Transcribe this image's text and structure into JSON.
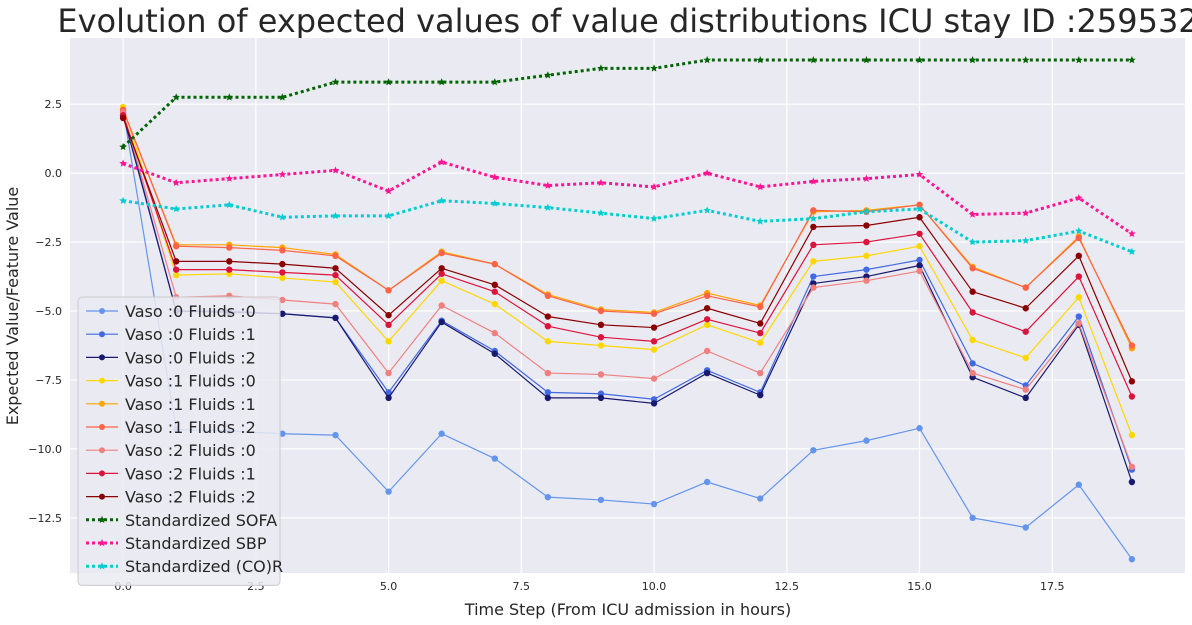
{
  "chart_data": {
    "type": "line",
    "title": "Evolution of expected values of value distributions ICU stay ID :259532",
    "xlabel": "Time Step (From ICU admission in hours)",
    "ylabel": "Expected Value/Feature Value",
    "xlim": [
      -1,
      20
    ],
    "ylim": [
      -14.5,
      4.9
    ],
    "xticks": [
      0.0,
      2.5,
      5.0,
      7.5,
      10.0,
      12.5,
      15.0,
      17.5
    ],
    "xtick_labels": [
      "0.0",
      "2.5",
      "5.0",
      "7.5",
      "10.0",
      "12.5",
      "15.0",
      "17.5"
    ],
    "yticks": [
      2.5,
      0.0,
      -2.5,
      -5.0,
      -7.5,
      -10.0,
      -12.5
    ],
    "ytick_labels": [
      "2.5",
      "0.0",
      "−2.5",
      "−5.0",
      "−7.5",
      "−10.0",
      "−12.5"
    ],
    "grid": true,
    "legend_position": "lower-left",
    "x": [
      0,
      1,
      2,
      3,
      4,
      5,
      6,
      7,
      8,
      9,
      10,
      11,
      12,
      13,
      14,
      15,
      16,
      17,
      18,
      19
    ],
    "series": [
      {
        "name": "Vaso :0 Fluids :0",
        "color": "#6495ED",
        "style": "solid",
        "marker": "dot",
        "values": [
          2.3,
          -9.3,
          -9.35,
          -9.45,
          -9.5,
          -11.55,
          -9.45,
          -10.35,
          -11.75,
          -11.85,
          -12.0,
          -11.2,
          -11.8,
          -10.05,
          -9.7,
          -9.25,
          -12.5,
          -12.85,
          -11.3,
          -14.0
        ]
      },
      {
        "name": "Vaso :0 Fluids :1",
        "color": "#4169E1",
        "style": "solid",
        "marker": "dot",
        "values": [
          2.2,
          -5.0,
          -5.0,
          -5.1,
          -5.25,
          -7.95,
          -5.35,
          -6.45,
          -7.95,
          -8.0,
          -8.2,
          -7.15,
          -7.95,
          -3.75,
          -3.5,
          -3.15,
          -6.9,
          -7.7,
          -5.2,
          -10.75
        ]
      },
      {
        "name": "Vaso :0 Fluids :2",
        "color": "#191970",
        "style": "solid",
        "marker": "dot",
        "values": [
          2.1,
          -5.0,
          -5.05,
          -5.1,
          -5.25,
          -8.15,
          -5.4,
          -6.55,
          -8.15,
          -8.15,
          -8.35,
          -7.25,
          -8.05,
          -4.0,
          -3.75,
          -3.35,
          -7.4,
          -8.15,
          -5.5,
          -11.2
        ]
      },
      {
        "name": "Vaso :1 Fluids :0",
        "color": "#FFD700",
        "style": "solid",
        "marker": "dot",
        "values": [
          2.4,
          -3.7,
          -3.65,
          -3.8,
          -3.95,
          -6.1,
          -3.9,
          -4.75,
          -6.1,
          -6.25,
          -6.4,
          -5.5,
          -6.15,
          -3.2,
          -3.0,
          -2.65,
          -6.05,
          -6.7,
          -4.5,
          -9.5
        ]
      },
      {
        "name": "Vaso :1 Fluids :1",
        "color": "#FFA500",
        "style": "solid",
        "marker": "dot",
        "values": [
          2.3,
          -2.6,
          -2.6,
          -2.7,
          -2.95,
          -4.25,
          -2.85,
          -3.3,
          -4.4,
          -4.95,
          -5.05,
          -4.35,
          -4.8,
          -1.4,
          -1.35,
          -1.15,
          -3.4,
          -4.15,
          -2.3,
          -6.35
        ]
      },
      {
        "name": "Vaso :1 Fluids :2",
        "color": "#FF6347",
        "style": "solid",
        "marker": "dot",
        "values": [
          2.3,
          -2.65,
          -2.7,
          -2.8,
          -3.0,
          -4.25,
          -2.9,
          -3.3,
          -4.45,
          -5.0,
          -5.1,
          -4.45,
          -4.85,
          -1.35,
          -1.4,
          -1.15,
          -3.45,
          -4.15,
          -2.35,
          -6.25
        ]
      },
      {
        "name": "Vaso :2 Fluids :0",
        "color": "#F08080",
        "style": "solid",
        "marker": "dot",
        "values": [
          2.2,
          -4.5,
          -4.45,
          -4.6,
          -4.75,
          -7.25,
          -4.8,
          -5.8,
          -7.25,
          -7.3,
          -7.45,
          -6.45,
          -7.25,
          -4.15,
          -3.9,
          -3.55,
          -7.25,
          -7.85,
          -5.45,
          -10.65
        ]
      },
      {
        "name": "Vaso :2 Fluids :1",
        "color": "#DC143C",
        "style": "solid",
        "marker": "dot",
        "values": [
          2.1,
          -3.5,
          -3.5,
          -3.6,
          -3.7,
          -5.5,
          -3.65,
          -4.3,
          -5.55,
          -5.95,
          -6.1,
          -5.3,
          -5.8,
          -2.6,
          -2.5,
          -2.2,
          -5.05,
          -5.75,
          -3.75,
          -8.1
        ]
      },
      {
        "name": "Vaso :2 Fluids :2",
        "color": "#8B0000",
        "style": "solid",
        "marker": "dot",
        "values": [
          2.0,
          -3.2,
          -3.2,
          -3.3,
          -3.45,
          -5.15,
          -3.45,
          -4.05,
          -5.2,
          -5.5,
          -5.6,
          -4.9,
          -5.45,
          -1.95,
          -1.9,
          -1.6,
          -4.3,
          -4.9,
          -3.0,
          -7.55
        ]
      },
      {
        "name": "Standardized SOFA",
        "color": "#006400",
        "style": "dotted",
        "marker": "star",
        "values": [
          0.95,
          2.75,
          2.75,
          2.75,
          3.3,
          3.3,
          3.3,
          3.3,
          3.55,
          3.8,
          3.8,
          4.1,
          4.1,
          4.1,
          4.1,
          4.1,
          4.1,
          4.1,
          4.1,
          4.1
        ]
      },
      {
        "name": "Standardized SBP",
        "color": "#FF1493",
        "style": "dotted",
        "marker": "star",
        "values": [
          0.35,
          -0.35,
          -0.2,
          -0.05,
          0.1,
          -0.65,
          0.4,
          -0.15,
          -0.45,
          -0.35,
          -0.5,
          0.0,
          -0.5,
          -0.3,
          -0.2,
          -0.05,
          -1.5,
          -1.45,
          -0.9,
          -2.2
        ]
      },
      {
        "name": "Standardized (CO)R",
        "color": "#00CED1",
        "style": "dotted",
        "marker": "star",
        "values": [
          -1.0,
          -1.3,
          -1.15,
          -1.6,
          -1.55,
          -1.55,
          -1.0,
          -1.1,
          -1.25,
          -1.45,
          -1.65,
          -1.35,
          -1.75,
          -1.65,
          -1.4,
          -1.3,
          -2.5,
          -2.45,
          -2.1,
          -2.85
        ]
      }
    ]
  }
}
